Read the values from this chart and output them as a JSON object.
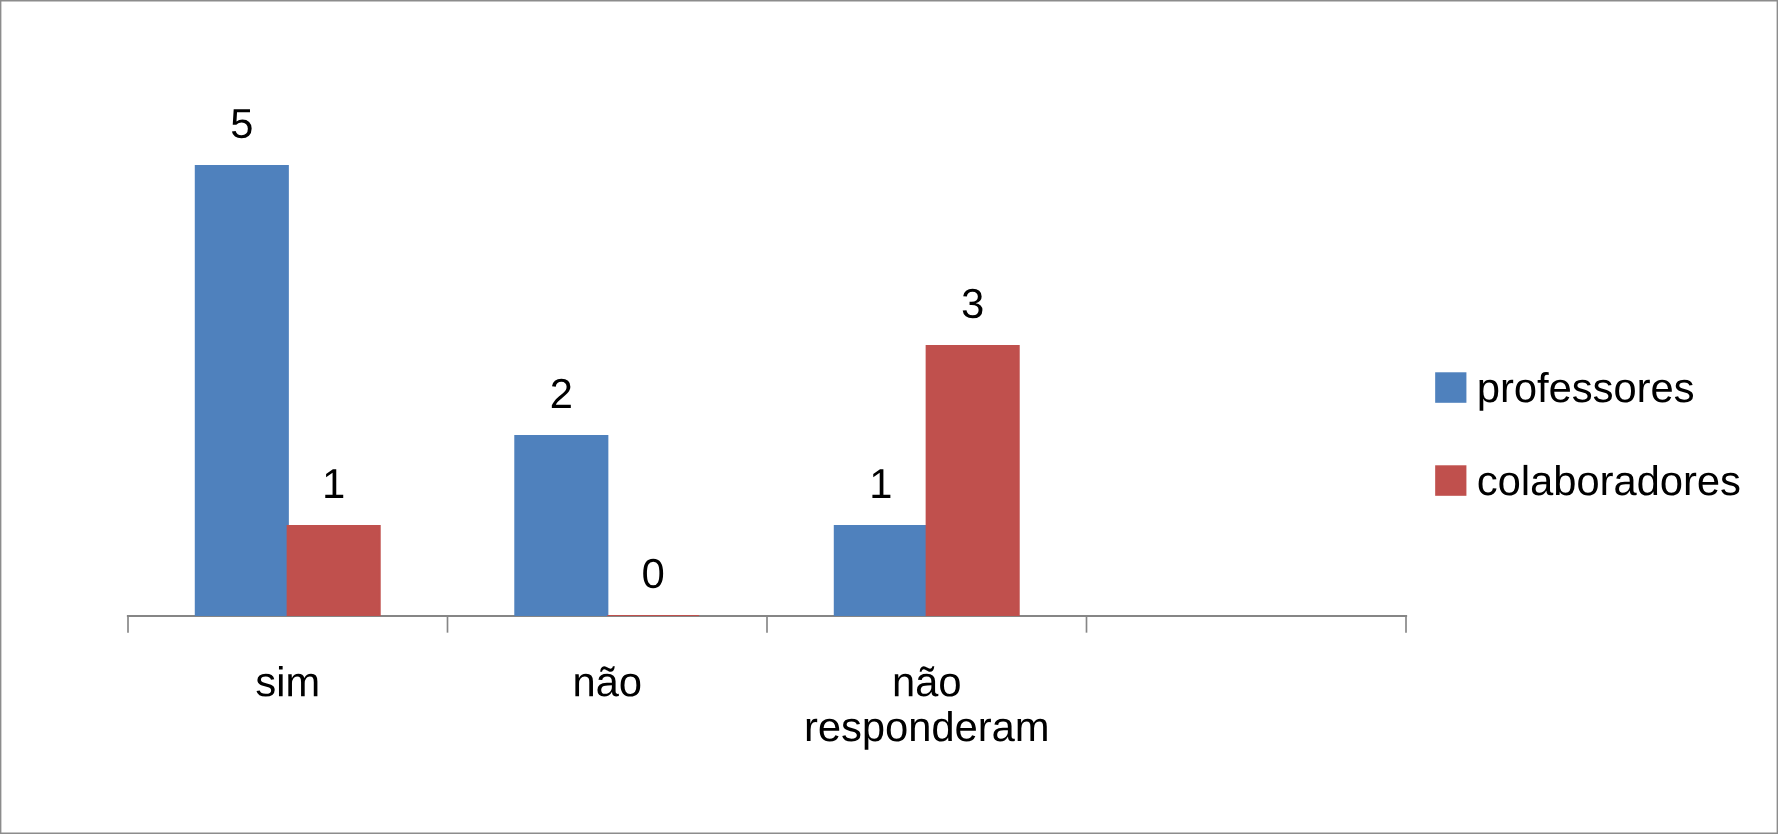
{
  "chart_data": {
    "type": "bar",
    "categories": [
      "sim",
      "não",
      "não\nresponderam",
      null
    ],
    "series": [
      {
        "name": "professores",
        "color": "#4f81bd",
        "values": [
          5,
          2,
          1,
          null
        ]
      },
      {
        "name": "colaboradores",
        "color": "#c0504d",
        "values": [
          1,
          0,
          3,
          null
        ]
      }
    ],
    "data_labels": true,
    "legend": "right",
    "tick_labels": "x",
    "grid": false
  }
}
